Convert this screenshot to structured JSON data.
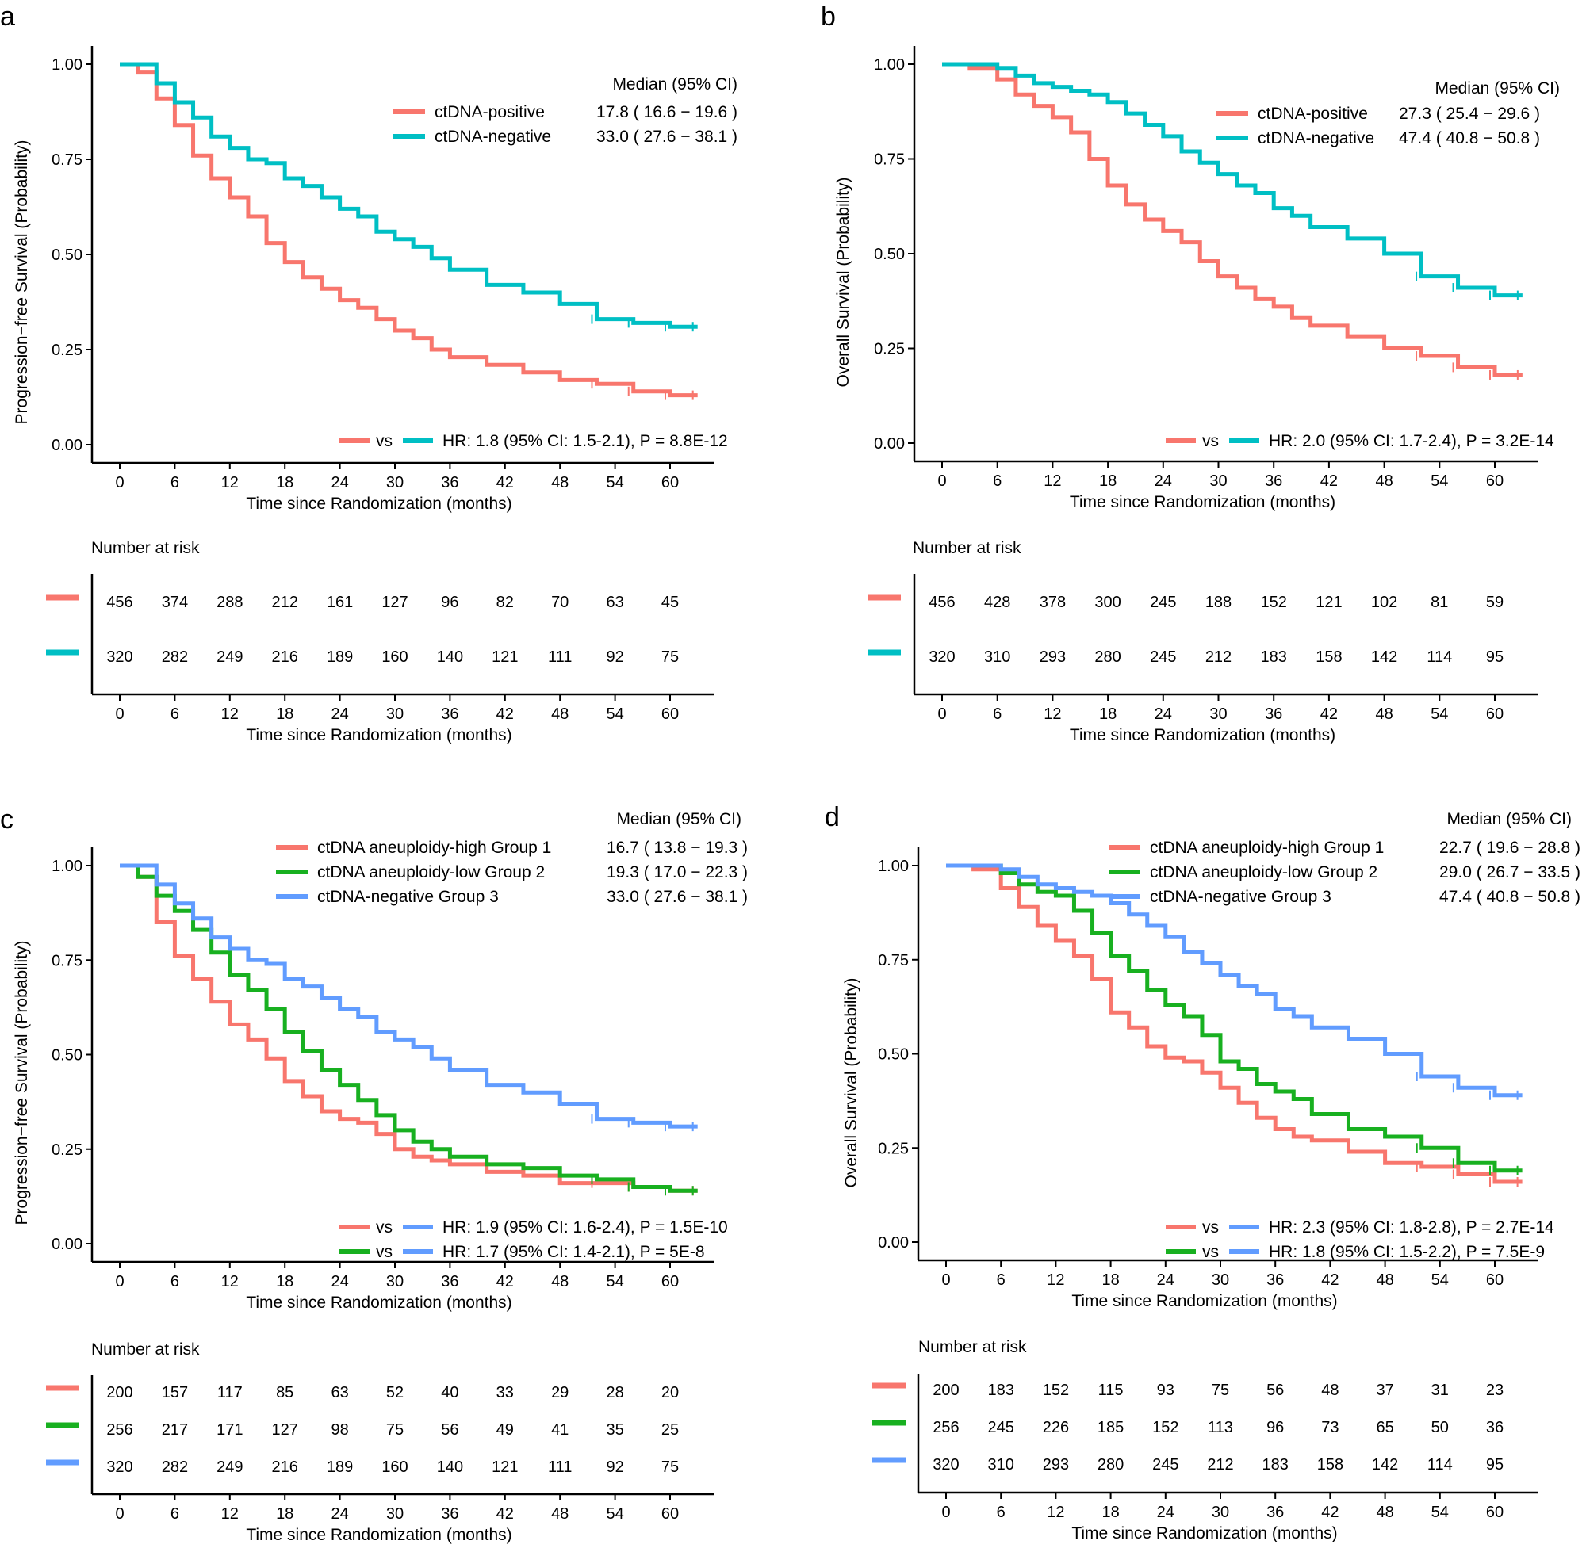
{
  "colors": {
    "pos": "#F8766D",
    "neg": "#00BFC4",
    "high": "#F8766D",
    "low": "#18B020",
    "neg3": "#619CFF",
    "axis": "#000000"
  },
  "chart_data": [
    {
      "panel": "a",
      "type": "line",
      "subtype": "kaplan-meier",
      "xlabel": "Time since Randomization (months)",
      "ylabel": "Progression−free Survival (Probability)",
      "xticks": [
        0,
        6,
        12,
        18,
        24,
        30,
        36,
        42,
        48,
        54,
        60
      ],
      "yticks": [
        "0.00",
        "0.25",
        "0.50",
        "0.75",
        "1.00"
      ],
      "xlim": [
        -3,
        63
      ],
      "ylim": [
        0,
        1
      ],
      "legend_title": "Median (95% CI)",
      "series": [
        {
          "name": "ctDNA-positive",
          "color": "pos",
          "median": "17.8 ( 16.6 − 19.6 )",
          "x": [
            0,
            2,
            4,
            6,
            8,
            10,
            12,
            14,
            16,
            18,
            20,
            22,
            24,
            26,
            28,
            30,
            32,
            34,
            36,
            40,
            44,
            48,
            52,
            56,
            60,
            63
          ],
          "y": [
            1.0,
            0.98,
            0.91,
            0.84,
            0.76,
            0.7,
            0.65,
            0.6,
            0.53,
            0.48,
            0.44,
            0.41,
            0.38,
            0.36,
            0.33,
            0.3,
            0.28,
            0.25,
            0.23,
            0.21,
            0.19,
            0.17,
            0.16,
            0.14,
            0.13,
            0.13
          ]
        },
        {
          "name": "ctDNA-negative",
          "color": "neg",
          "median": "33.0 ( 27.6 − 38.1 )",
          "x": [
            0,
            2,
            4,
            6,
            8,
            10,
            12,
            14,
            16,
            18,
            20,
            22,
            24,
            26,
            28,
            30,
            32,
            34,
            36,
            40,
            44,
            48,
            52,
            56,
            60,
            63
          ],
          "y": [
            1.0,
            1.0,
            0.95,
            0.9,
            0.86,
            0.81,
            0.78,
            0.75,
            0.74,
            0.7,
            0.68,
            0.65,
            0.62,
            0.6,
            0.56,
            0.54,
            0.52,
            0.49,
            0.46,
            0.42,
            0.4,
            0.37,
            0.33,
            0.32,
            0.31,
            0.31
          ]
        }
      ],
      "hr_lines": [
        {
          "from": "pos",
          "to": "neg",
          "text": "HR: 1.8 (95% CI: 1.5-2.1), P = 8.8E-12"
        }
      ],
      "risk_title": "Number at risk",
      "risk_rows": [
        {
          "color": "pos",
          "values": [
            456,
            374,
            288,
            212,
            161,
            127,
            96,
            82,
            70,
            63,
            45
          ]
        },
        {
          "color": "neg",
          "values": [
            320,
            282,
            249,
            216,
            189,
            160,
            140,
            121,
            111,
            92,
            75
          ]
        }
      ]
    },
    {
      "panel": "b",
      "type": "line",
      "subtype": "kaplan-meier",
      "xlabel": "Time since Randomization (months)",
      "ylabel": "Overall Survival (Probability)",
      "xticks": [
        0,
        6,
        12,
        18,
        24,
        30,
        36,
        42,
        48,
        54,
        60
      ],
      "yticks": [
        "0.00",
        "0.25",
        "0.50",
        "0.75",
        "1.00"
      ],
      "xlim": [
        -3,
        63
      ],
      "ylim": [
        0,
        1
      ],
      "legend_title": "Median (95% CI)",
      "series": [
        {
          "name": "ctDNA-positive",
          "color": "pos",
          "median": "27.3 ( 25.4 − 29.6 )",
          "x": [
            0,
            3,
            6,
            8,
            10,
            12,
            14,
            16,
            18,
            20,
            22,
            24,
            26,
            28,
            30,
            32,
            34,
            36,
            38,
            40,
            44,
            48,
            52,
            56,
            60,
            63
          ],
          "y": [
            1.0,
            0.99,
            0.96,
            0.92,
            0.89,
            0.86,
            0.82,
            0.75,
            0.68,
            0.63,
            0.59,
            0.56,
            0.53,
            0.48,
            0.44,
            0.41,
            0.38,
            0.36,
            0.33,
            0.31,
            0.28,
            0.25,
            0.23,
            0.2,
            0.18,
            0.18
          ]
        },
        {
          "name": "ctDNA-negative",
          "color": "neg",
          "median": "47.4 ( 40.8 − 50.8 )",
          "x": [
            0,
            3,
            6,
            8,
            10,
            12,
            14,
            16,
            18,
            20,
            22,
            24,
            26,
            28,
            30,
            32,
            34,
            36,
            38,
            40,
            44,
            48,
            52,
            56,
            60,
            63
          ],
          "y": [
            1.0,
            1.0,
            0.99,
            0.97,
            0.95,
            0.94,
            0.93,
            0.92,
            0.9,
            0.87,
            0.84,
            0.81,
            0.77,
            0.74,
            0.71,
            0.68,
            0.66,
            0.62,
            0.6,
            0.57,
            0.54,
            0.5,
            0.44,
            0.41,
            0.39,
            0.39
          ]
        }
      ],
      "hr_lines": [
        {
          "from": "pos",
          "to": "neg",
          "text": "HR: 2.0 (95% CI: 1.7-2.4), P = 3.2E-14"
        }
      ],
      "risk_title": "Number at risk",
      "risk_rows": [
        {
          "color": "pos",
          "values": [
            456,
            428,
            378,
            300,
            245,
            188,
            152,
            121,
            102,
            81,
            59
          ]
        },
        {
          "color": "neg",
          "values": [
            320,
            310,
            293,
            280,
            245,
            212,
            183,
            158,
            142,
            114,
            95
          ]
        }
      ]
    },
    {
      "panel": "c",
      "type": "line",
      "subtype": "kaplan-meier",
      "xlabel": "Time since Randomization (months)",
      "ylabel": "Progression−free Survival (Probability)",
      "xticks": [
        0,
        6,
        12,
        18,
        24,
        30,
        36,
        42,
        48,
        54,
        60
      ],
      "yticks": [
        "0.00",
        "0.25",
        "0.50",
        "0.75",
        "1.00"
      ],
      "xlim": [
        -3,
        63
      ],
      "ylim": [
        0,
        1
      ],
      "legend_title": "Median (95% CI)",
      "series": [
        {
          "name": "ctDNA aneuploidy-high Group 1",
          "color": "high",
          "median": "16.7 ( 13.8 − 19.3 )",
          "x": [
            0,
            2,
            4,
            6,
            8,
            10,
            12,
            14,
            16,
            18,
            20,
            22,
            24,
            26,
            28,
            30,
            32,
            34,
            36,
            40,
            44,
            48,
            52,
            56,
            60,
            63
          ],
          "y": [
            1.0,
            0.97,
            0.85,
            0.76,
            0.7,
            0.64,
            0.58,
            0.54,
            0.49,
            0.43,
            0.39,
            0.35,
            0.33,
            0.32,
            0.29,
            0.25,
            0.23,
            0.22,
            0.21,
            0.19,
            0.18,
            0.16,
            0.16,
            0.15,
            0.14,
            0.14
          ]
        },
        {
          "name": "ctDNA aneuploidy-low  Group 2",
          "color": "low",
          "median": "19.3 ( 17.0 − 22.3 )",
          "x": [
            0,
            2,
            4,
            6,
            8,
            10,
            12,
            14,
            16,
            18,
            20,
            22,
            24,
            26,
            28,
            30,
            32,
            34,
            36,
            40,
            44,
            48,
            52,
            56,
            60,
            63
          ],
          "y": [
            1.0,
            0.97,
            0.92,
            0.88,
            0.83,
            0.77,
            0.71,
            0.67,
            0.62,
            0.56,
            0.51,
            0.46,
            0.42,
            0.38,
            0.34,
            0.3,
            0.27,
            0.25,
            0.23,
            0.21,
            0.2,
            0.18,
            0.17,
            0.15,
            0.14,
            0.14
          ]
        },
        {
          "name": "ctDNA-negative Group 3",
          "color": "neg3",
          "median": "33.0 ( 27.6 − 38.1 )",
          "x": [
            0,
            2,
            4,
            6,
            8,
            10,
            12,
            14,
            16,
            18,
            20,
            22,
            24,
            26,
            28,
            30,
            32,
            34,
            36,
            40,
            44,
            48,
            52,
            56,
            60,
            63
          ],
          "y": [
            1.0,
            1.0,
            0.95,
            0.9,
            0.86,
            0.81,
            0.78,
            0.75,
            0.74,
            0.7,
            0.68,
            0.65,
            0.62,
            0.6,
            0.56,
            0.54,
            0.52,
            0.49,
            0.46,
            0.42,
            0.4,
            0.37,
            0.33,
            0.32,
            0.31,
            0.31
          ]
        }
      ],
      "hr_lines": [
        {
          "from": "high",
          "to": "neg3",
          "text": "HR: 1.9 (95% CI: 1.6-2.4), P = 1.5E-10"
        },
        {
          "from": "low",
          "to": "neg3",
          "text": "HR: 1.7 (95% CI: 1.4-2.1), P = 5E-8"
        }
      ],
      "risk_title": "Number at risk",
      "risk_rows": [
        {
          "color": "high",
          "values": [
            200,
            157,
            117,
            85,
            63,
            52,
            40,
            33,
            29,
            28,
            20
          ]
        },
        {
          "color": "low",
          "values": [
            256,
            217,
            171,
            127,
            98,
            75,
            56,
            49,
            41,
            35,
            25
          ]
        },
        {
          "color": "neg3",
          "values": [
            320,
            282,
            249,
            216,
            189,
            160,
            140,
            121,
            111,
            92,
            75
          ]
        }
      ]
    },
    {
      "panel": "d",
      "type": "line",
      "subtype": "kaplan-meier",
      "xlabel": "Time since Randomization (months)",
      "ylabel": "Overall Survival (Probability)",
      "xticks": [
        0,
        6,
        12,
        18,
        24,
        30,
        36,
        42,
        48,
        54,
        60
      ],
      "yticks": [
        "0.00",
        "0.25",
        "0.50",
        "0.75",
        "1.00"
      ],
      "xlim": [
        -3,
        63
      ],
      "ylim": [
        0,
        1
      ],
      "legend_title": "Median (95% CI)",
      "series": [
        {
          "name": "ctDNA aneuploidy-high Group 1",
          "color": "high",
          "median": "22.7 ( 19.6 − 28.8 )",
          "x": [
            0,
            3,
            6,
            8,
            10,
            12,
            14,
            16,
            18,
            20,
            22,
            24,
            26,
            28,
            30,
            32,
            34,
            36,
            38,
            40,
            44,
            48,
            52,
            56,
            60,
            63
          ],
          "y": [
            1.0,
            0.99,
            0.94,
            0.89,
            0.84,
            0.8,
            0.76,
            0.7,
            0.61,
            0.57,
            0.52,
            0.49,
            0.48,
            0.45,
            0.41,
            0.37,
            0.33,
            0.3,
            0.28,
            0.27,
            0.24,
            0.21,
            0.2,
            0.18,
            0.16,
            0.16
          ]
        },
        {
          "name": "ctDNA aneuploidy-low  Group 2",
          "color": "low",
          "median": "29.0 ( 26.7 − 33.5 )",
          "x": [
            0,
            3,
            6,
            8,
            10,
            12,
            14,
            16,
            18,
            20,
            22,
            24,
            26,
            28,
            30,
            32,
            34,
            36,
            38,
            40,
            44,
            48,
            52,
            56,
            60,
            63
          ],
          "y": [
            1.0,
            1.0,
            0.98,
            0.95,
            0.93,
            0.92,
            0.88,
            0.82,
            0.76,
            0.72,
            0.67,
            0.63,
            0.6,
            0.55,
            0.48,
            0.46,
            0.42,
            0.4,
            0.38,
            0.34,
            0.3,
            0.28,
            0.25,
            0.21,
            0.19,
            0.19
          ]
        },
        {
          "name": "ctDNA-negative Group 3",
          "color": "neg3",
          "median": "47.4 ( 40.8 − 50.8 )",
          "x": [
            0,
            3,
            6,
            8,
            10,
            12,
            14,
            16,
            18,
            20,
            22,
            24,
            26,
            28,
            30,
            32,
            34,
            36,
            38,
            40,
            44,
            48,
            52,
            56,
            60,
            63
          ],
          "y": [
            1.0,
            1.0,
            0.99,
            0.97,
            0.95,
            0.94,
            0.93,
            0.92,
            0.9,
            0.87,
            0.84,
            0.81,
            0.77,
            0.74,
            0.71,
            0.68,
            0.66,
            0.62,
            0.6,
            0.57,
            0.54,
            0.5,
            0.44,
            0.41,
            0.39,
            0.39
          ]
        }
      ],
      "hr_lines": [
        {
          "from": "high",
          "to": "neg3",
          "text": "HR: 2.3 (95% CI: 1.8-2.8), P = 2.7E-14"
        },
        {
          "from": "low",
          "to": "neg3",
          "text": "HR: 1.8 (95% CI: 1.5-2.2), P = 7.5E-9"
        }
      ],
      "risk_title": "Number at risk",
      "risk_rows": [
        {
          "color": "high",
          "values": [
            200,
            183,
            152,
            115,
            93,
            75,
            56,
            48,
            37,
            31,
            23
          ]
        },
        {
          "color": "low",
          "values": [
            256,
            245,
            226,
            185,
            152,
            113,
            96,
            73,
            65,
            50,
            36
          ]
        },
        {
          "color": "neg3",
          "values": [
            320,
            310,
            293,
            280,
            245,
            212,
            183,
            158,
            142,
            114,
            95
          ]
        }
      ]
    }
  ],
  "vs_label": "vs"
}
